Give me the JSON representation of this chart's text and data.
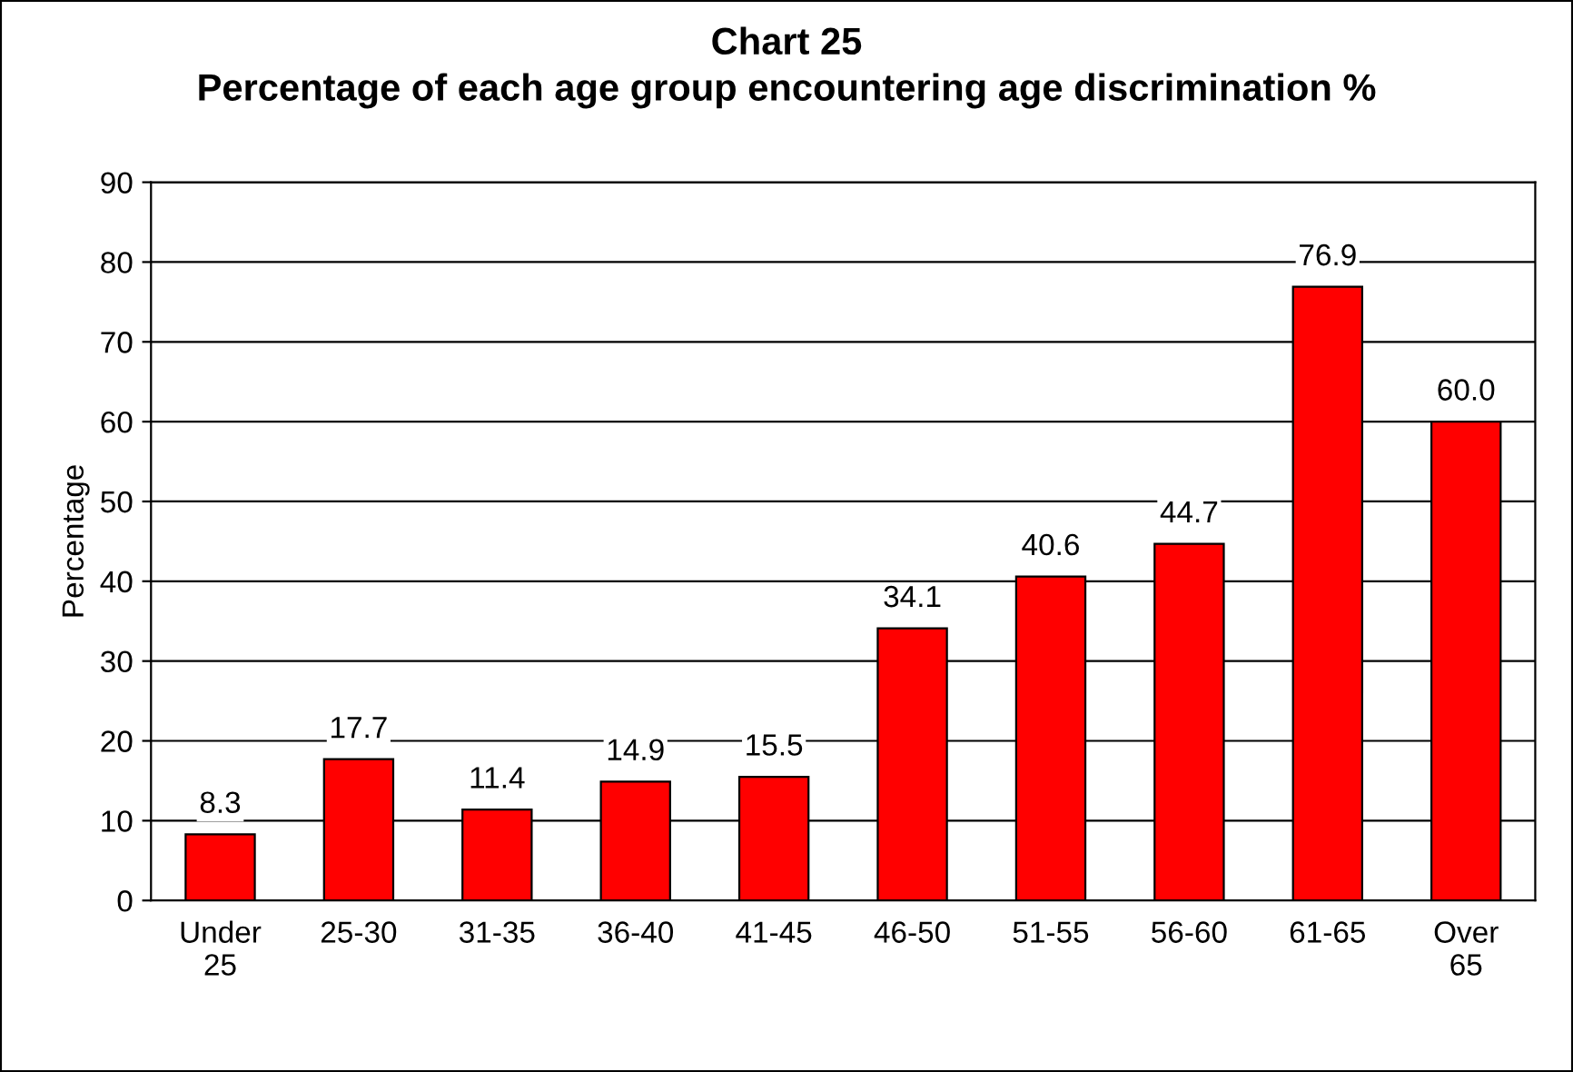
{
  "chart_data": {
    "type": "bar",
    "title": "Chart 25\nPercentage of each age group encountering age discrimination %",
    "ylabel": "Percentage",
    "categories": [
      "Under 25",
      "25-30",
      "31-35",
      "36-40",
      "41-45",
      "46-50",
      "51-55",
      "56-60",
      "61-65",
      "Over 65"
    ],
    "values": [
      8.3,
      17.7,
      11.4,
      14.9,
      15.5,
      34.1,
      40.6,
      44.7,
      76.9,
      60.0
    ],
    "value_labels": [
      "8.3",
      "17.7",
      "11.4",
      "14.9",
      "15.5",
      "34.1",
      "40.6",
      "44.7",
      "76.9",
      "60.0"
    ],
    "color": "#ff0000",
    "ylim": [
      0,
      90
    ],
    "yticks": [
      0,
      10,
      20,
      30,
      40,
      50,
      60,
      70,
      80,
      90
    ],
    "grid": "y",
    "legend": false
  }
}
